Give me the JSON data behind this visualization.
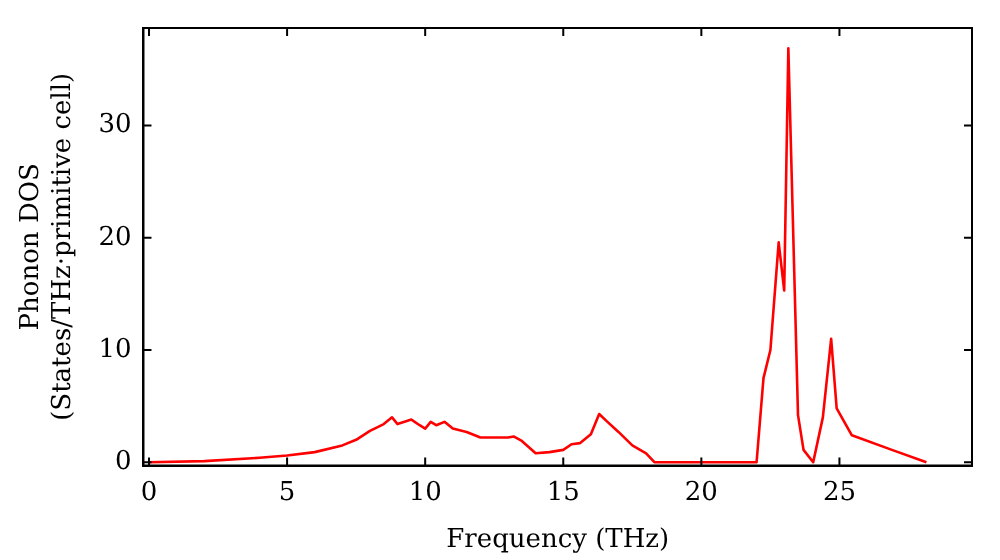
{
  "chart_data": {
    "type": "line",
    "xlabel": "Frequency (THz)",
    "ylabel": "Phonon DOS\n(States/THz·primitive cell)",
    "xlim": [
      -0.2,
      29.8
    ],
    "ylim": [
      -0.3,
      38.7
    ],
    "xticks": [
      0,
      5,
      10,
      15,
      20,
      25
    ],
    "yticks": [
      0,
      10,
      20,
      30
    ],
    "grid": false,
    "legend": false,
    "marker": "none",
    "line_style": "solid",
    "series": [
      {
        "color": "#ff0000",
        "x": [
          0,
          2,
          4,
          5,
          6,
          7,
          7.5,
          8,
          8.5,
          8.8,
          9.0,
          9.5,
          9.8,
          10.0,
          10.2,
          10.4,
          10.7,
          11,
          11.5,
          12,
          13,
          13.2,
          13.5,
          14,
          14.5,
          15,
          15.3,
          15.6,
          16.0,
          16.3,
          16.6,
          17,
          17.5,
          18,
          18.3,
          22,
          22.25,
          22.5,
          22.8,
          23.0,
          23.15,
          23.5,
          23.7,
          24.05,
          24.4,
          24.7,
          24.9,
          25.45,
          26.9,
          28.15
        ],
        "values": [
          0,
          0.1,
          0.4,
          0.6,
          0.9,
          1.5,
          2.0,
          2.8,
          3.4,
          4.0,
          3.4,
          3.8,
          3.3,
          3.0,
          3.6,
          3.3,
          3.6,
          3.0,
          2.7,
          2.2,
          2.2,
          2.3,
          1.9,
          0.8,
          0.9,
          1.1,
          1.6,
          1.7,
          2.5,
          4.3,
          3.6,
          2.7,
          1.5,
          0.8,
          0,
          0,
          7.5,
          10,
          19.6,
          15.3,
          36.9,
          4.2,
          1.1,
          0,
          4,
          11,
          4.8,
          2.4,
          1.1,
          0
        ]
      }
    ]
  }
}
